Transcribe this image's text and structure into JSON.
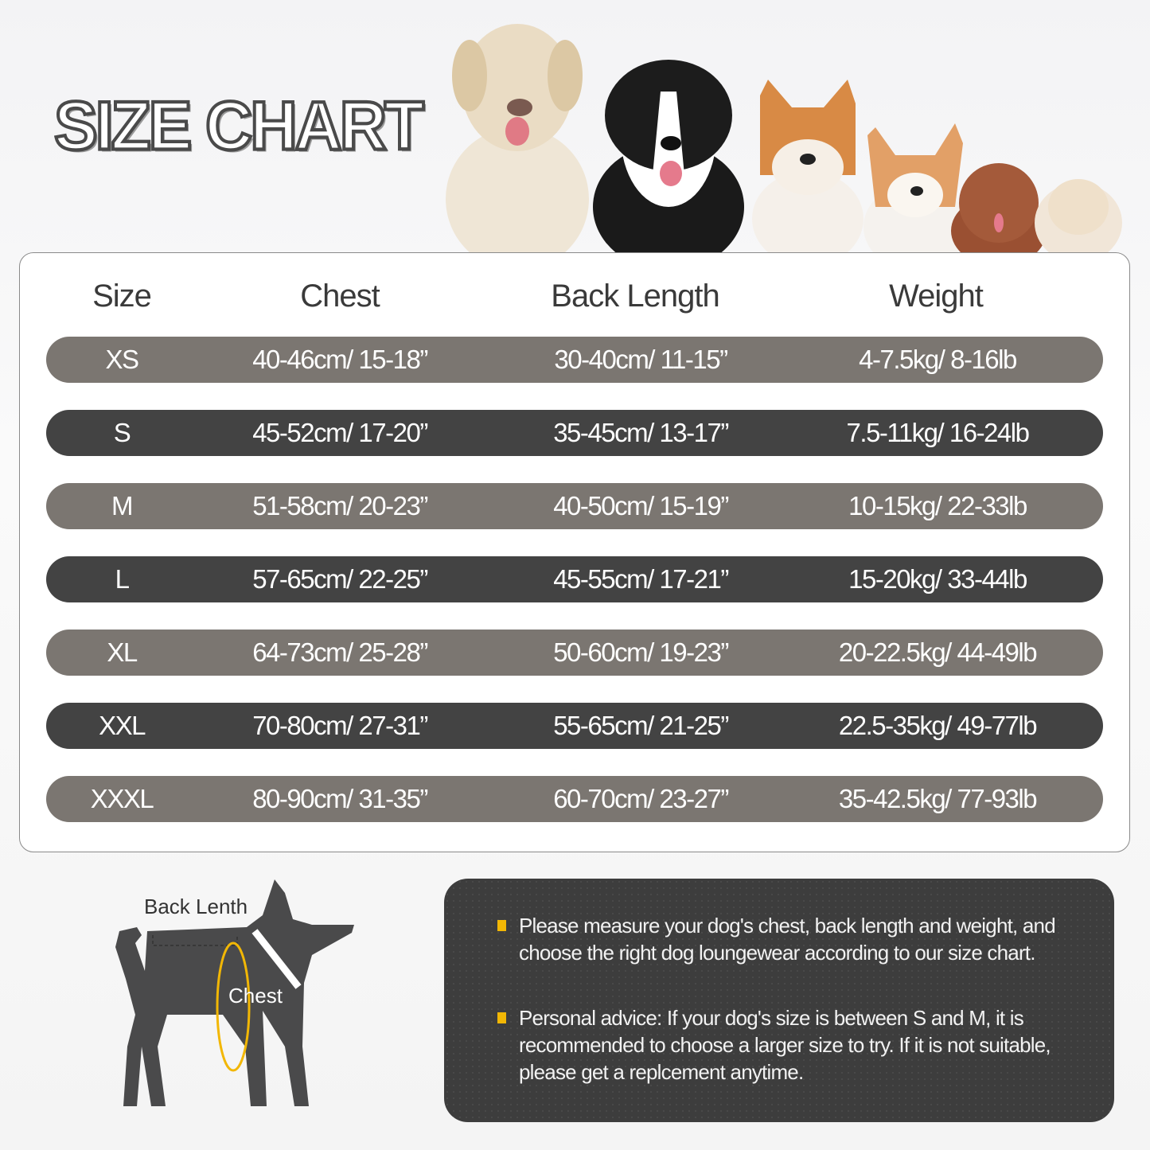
{
  "title": "SIZE CHART",
  "table": {
    "headers": [
      "Size",
      "Chest",
      "Back Length",
      "Weight"
    ],
    "rows": [
      [
        "XS",
        "40-46cm/ 15-18”",
        "30-40cm/ 11-15”",
        "4-7.5kg/ 8-16lb"
      ],
      [
        "S",
        "45-52cm/ 17-20”",
        "35-45cm/ 13-17”",
        "7.5-11kg/ 16-24lb"
      ],
      [
        "M",
        "51-58cm/ 20-23”",
        "40-50cm/ 15-19”",
        "10-15kg/ 22-33lb"
      ],
      [
        "L",
        "57-65cm/ 22-25”",
        "45-55cm/ 17-21”",
        "15-20kg/ 33-44lb"
      ],
      [
        "XL",
        "64-73cm/ 25-28”",
        "50-60cm/ 19-23”",
        "20-22.5kg/ 44-49lb"
      ],
      [
        "XXL",
        "70-80cm/ 27-31”",
        "55-65cm/ 21-25”",
        "22.5-35kg/ 49-77lb"
      ],
      [
        "XXXL",
        "80-90cm/ 31-35”",
        "60-70cm/ 23-27”",
        "35-42.5kg/ 77-93lb"
      ]
    ]
  },
  "diagram": {
    "back_label": "Back Lenth",
    "chest_label": "Chest"
  },
  "notes": [
    "Please measure your dog's chest, back length and weight, and choose the right dog loungewear according to our size chart.",
    "Personal advice: If your dog's size is between S and M, it is recommended to choose a larger size to try. If it is not suitable, please get a replcement anytime."
  ],
  "colors": {
    "row_light": "#7b7671",
    "row_dark": "#434343",
    "panel": "#3d3d3d",
    "bullet": "#f2b705",
    "chest_ring": "#f2b705"
  }
}
